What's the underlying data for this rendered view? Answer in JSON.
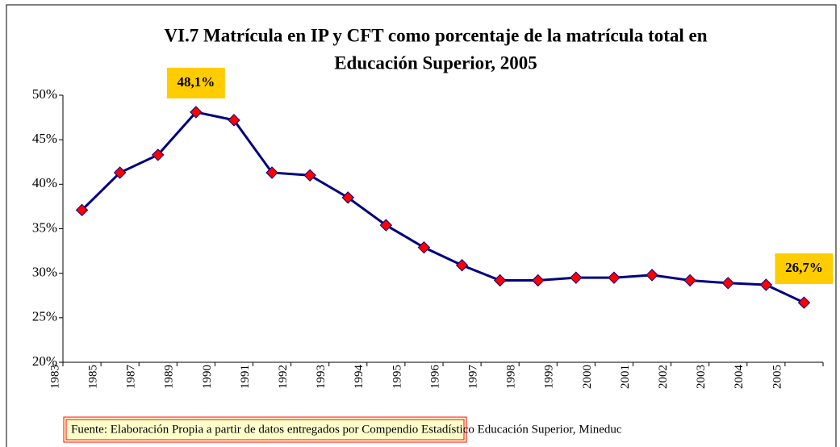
{
  "chart_data": {
    "type": "line",
    "title": [
      "VI.7 Matrícula en IP y CFT como porcentaje de la matrícula total en",
      "Educación Superior, 2005"
    ],
    "categories": [
      "1983",
      "1985",
      "1987",
      "1989",
      "1990",
      "1991",
      "1992",
      "1993",
      "1994",
      "1995",
      "1996",
      "1997",
      "1998",
      "1999",
      "2000",
      "2001",
      "2002",
      "2003",
      "2004",
      "2005"
    ],
    "series": [
      {
        "color": "#000080",
        "marker_color": "#ff0000",
        "values": [
          37.1,
          41.3,
          43.3,
          48.1,
          47.2,
          41.3,
          41.0,
          38.5,
          35.4,
          32.9,
          30.9,
          29.2,
          29.2,
          29.5,
          29.5,
          29.8,
          29.2,
          28.9,
          28.7,
          26.7
        ],
        "value_labels": [
          null,
          null,
          null,
          "48,1%",
          null,
          null,
          null,
          null,
          null,
          null,
          null,
          null,
          null,
          null,
          null,
          null,
          null,
          null,
          null,
          "26,7%"
        ]
      }
    ],
    "ylim": [
      20,
      50
    ],
    "yticks": [
      {
        "value": 20,
        "label": "20%"
      },
      {
        "value": 25,
        "label": "25%"
      },
      {
        "value": 30,
        "label": "30%"
      },
      {
        "value": 35,
        "label": "35%"
      },
      {
        "value": 40,
        "label": "40%"
      },
      {
        "value": 45,
        "label": "45%"
      },
      {
        "value": 50,
        "label": "50%"
      }
    ],
    "grid": false,
    "source": "Fuente: Elaboración Propia a partir de datos entregados por Compendio Estadístico Educación Superior, Mineduc"
  }
}
